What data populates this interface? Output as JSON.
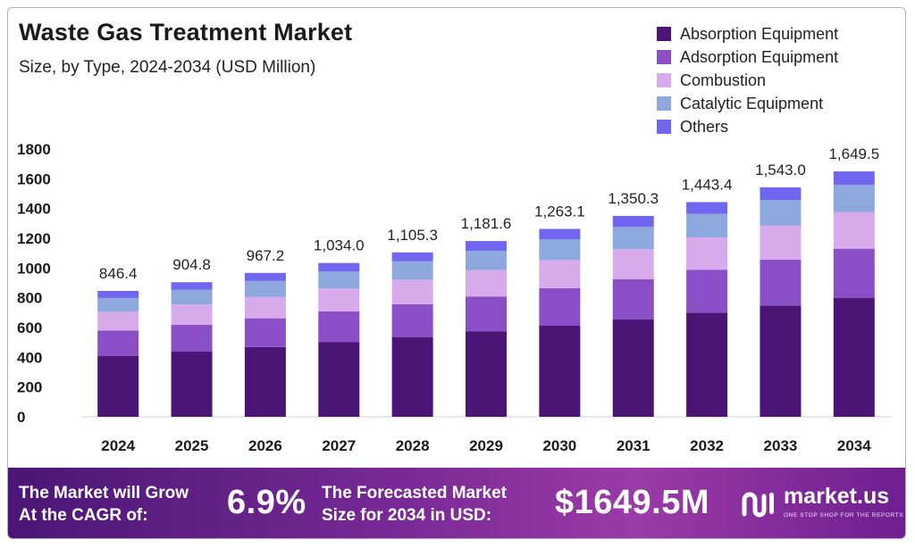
{
  "header": {
    "title": "Waste Gas Treatment Market",
    "subtitle": "Size, by Type, 2024-2034 (USD Million)"
  },
  "colors": {
    "absorption": "#4a1577",
    "adsorption": "#8a4fc7",
    "combustion": "#d7aaeb",
    "catalytic": "#8da8dc",
    "others": "#7166ef"
  },
  "chart_data": {
    "type": "bar",
    "stacked": true,
    "title": "Waste Gas Treatment Market",
    "subtitle": "Size, by Type, 2024-2034 (USD Million)",
    "categories": [
      "2024",
      "2025",
      "2026",
      "2027",
      "2028",
      "2029",
      "2030",
      "2031",
      "2032",
      "2033",
      "2034"
    ],
    "totals": [
      846.4,
      904.8,
      967.2,
      1034.0,
      1105.3,
      1181.6,
      1263.1,
      1350.3,
      1443.4,
      1543.0,
      1649.5
    ],
    "total_labels": [
      "846.4",
      "904.8",
      "967.2",
      "1,034.0",
      "1,105.3",
      "1,181.6",
      "1,263.1",
      "1,350.3",
      "1,443.4",
      "1,543.0",
      "1,649.5"
    ],
    "series": [
      {
        "name": "Absorption Equipment",
        "color": "#4a1577",
        "values": [
          410,
          438,
          469,
          501,
          536,
          573,
          612,
          654,
          700,
          748,
          800
        ]
      },
      {
        "name": "Adsorption Equipment",
        "color": "#8a4fc7",
        "values": [
          169,
          181,
          193,
          207,
          221,
          236,
          253,
          270,
          289,
          308,
          330
        ]
      },
      {
        "name": "Combustion",
        "color": "#d7aaeb",
        "values": [
          127,
          136,
          145,
          155,
          166,
          177,
          189,
          203,
          217,
          231,
          247
        ]
      },
      {
        "name": "Catalytic Equipment",
        "color": "#8da8dc",
        "values": [
          93,
          100,
          106,
          114,
          122,
          130,
          139,
          149,
          158,
          170,
          182
        ]
      },
      {
        "name": "Others",
        "color": "#7166ef",
        "values": [
          47.4,
          49.8,
          54.2,
          57.0,
          60.3,
          65.6,
          70.1,
          74.3,
          79.4,
          86.0,
          90.5
        ]
      }
    ],
    "yticks": [
      0,
      200,
      400,
      600,
      800,
      1000,
      1200,
      1400,
      1600,
      1800
    ],
    "ylim": [
      0,
      1800
    ],
    "legend": "top-right",
    "grid": false
  },
  "footer": {
    "cagr_text_1": "The Market will Grow",
    "cagr_text_2": "At the CAGR of:",
    "cagr_value": "6.9%",
    "forecast_text_1": "The Forecasted Market",
    "forecast_text_2": "Size for 2034 in USD:",
    "forecast_value": "$1649.5M",
    "logo_text": "market.us",
    "logo_tagline": "ONE STOP SHOP FOR THE REPORTS"
  }
}
